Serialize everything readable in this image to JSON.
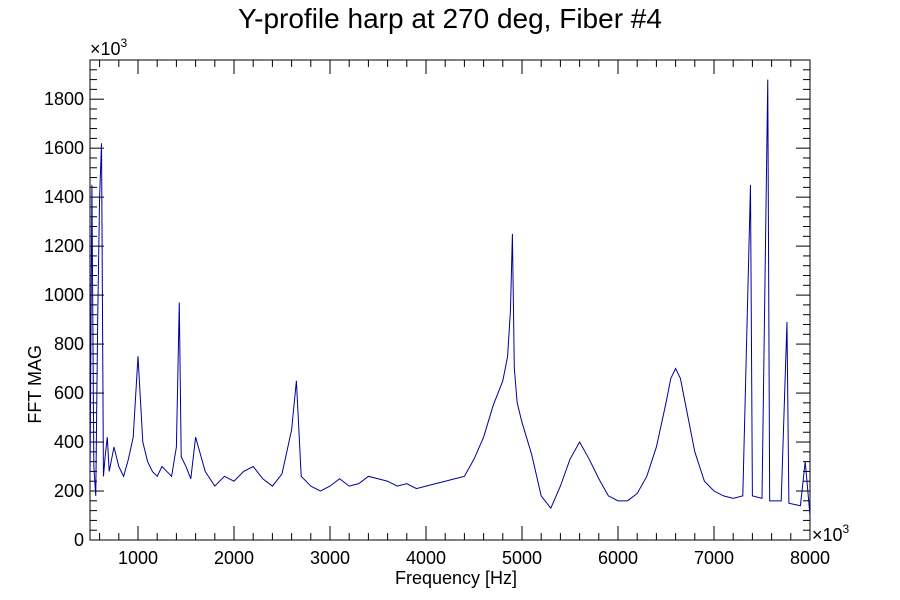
{
  "chart_data": {
    "type": "line",
    "title": "Y-profile harp at 270 deg, Fiber #4",
    "xlabel": "Frequency [Hz]",
    "ylabel": "FFT MAG",
    "x_multiplier_label": "×10",
    "x_multiplier_exp": "3",
    "y_multiplier_label": "×10",
    "y_multiplier_exp": "3",
    "xlim": [
      500,
      8000
    ],
    "ylim": [
      0,
      1960
    ],
    "x_ticks": [
      1000,
      2000,
      3000,
      4000,
      5000,
      6000,
      7000,
      8000
    ],
    "y_ticks": [
      0,
      200,
      400,
      600,
      800,
      1000,
      1200,
      1400,
      1600,
      1800
    ],
    "grid": false,
    "line_color": "#000099",
    "series": [
      {
        "x": [
          500,
          520,
          540,
          560,
          580,
          600,
          620,
          640,
          660,
          680,
          700,
          750,
          800,
          850,
          900,
          950,
          1000,
          1050,
          1100,
          1150,
          1200,
          1250,
          1300,
          1350,
          1400,
          1430,
          1450,
          1500,
          1550,
          1600,
          1700,
          1800,
          1900,
          2000,
          2100,
          2200,
          2300,
          2400,
          2500,
          2600,
          2650,
          2700,
          2800,
          2900,
          3000,
          3100,
          3200,
          3300,
          3400,
          3500,
          3600,
          3700,
          3800,
          3900,
          4000,
          4100,
          4200,
          4300,
          4400,
          4500,
          4600,
          4700,
          4800,
          4850,
          4880,
          4900,
          4920,
          4950,
          5000,
          5100,
          5200,
          5300,
          5400,
          5500,
          5600,
          5700,
          5800,
          5900,
          6000,
          6100,
          6200,
          6300,
          6400,
          6500,
          6550,
          6600,
          6650,
          6700,
          6800,
          6900,
          7000,
          7100,
          7200,
          7300,
          7380,
          7400,
          7500,
          7560,
          7580,
          7700,
          7760,
          7780,
          7900,
          7950,
          8000
        ],
        "y": [
          250,
          1450,
          300,
          180,
          900,
          1400,
          1620,
          260,
          350,
          420,
          280,
          380,
          300,
          260,
          330,
          420,
          750,
          400,
          320,
          280,
          260,
          300,
          280,
          260,
          380,
          970,
          340,
          300,
          250,
          420,
          280,
          220,
          260,
          240,
          280,
          300,
          250,
          220,
          270,
          450,
          650,
          260,
          220,
          200,
          220,
          250,
          220,
          230,
          260,
          250,
          240,
          220,
          230,
          210,
          220,
          230,
          240,
          250,
          260,
          330,
          420,
          550,
          650,
          750,
          940,
          1250,
          700,
          560,
          480,
          350,
          180,
          130,
          220,
          330,
          400,
          330,
          250,
          180,
          160,
          160,
          190,
          260,
          380,
          560,
          660,
          700,
          660,
          560,
          360,
          240,
          200,
          180,
          170,
          180,
          1450,
          180,
          170,
          1880,
          160,
          160,
          890,
          150,
          140,
          320,
          100
        ]
      }
    ]
  }
}
